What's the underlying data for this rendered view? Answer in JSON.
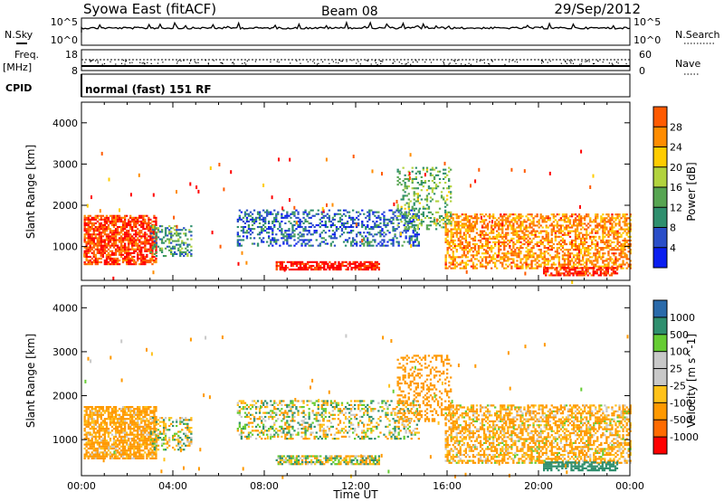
{
  "header": {
    "title": "Syowa East (fitACF)",
    "beam": "Beam 08",
    "date": "29/Sep/2012"
  },
  "top_panels": {
    "nsky_label": "N.Sky",
    "nsky_ticks": [
      "10^5",
      "10^0"
    ],
    "nsearch_label": "N.Search",
    "nsearch_ticks": [
      "10^5",
      "10^0"
    ],
    "freq_label": "Freq.",
    "freq_unit": "[MHz]",
    "freq_ticks": [
      "18",
      "8"
    ],
    "nave_label": "Nave",
    "nave_ticks": [
      "60",
      "0"
    ],
    "cpid_label": "CPID",
    "cpid_text": "normal (fast) 151 RF"
  },
  "colors": {
    "power": [
      "#0a1ef0",
      "#2a4ec8",
      "#2f8f6e",
      "#57a552",
      "#b2d33e",
      "#ffcc00",
      "#ff8c00",
      "#ff5a00",
      "#ff0000"
    ],
    "velocity": [
      "#ff0000",
      "#ff6a00",
      "#ff9900",
      "#ffc21a",
      "#c8c8c8",
      "#c8c8c8",
      "#66cc33",
      "#2f8f6e",
      "#2a6aaa",
      "#2244bb"
    ]
  },
  "chart_data": [
    {
      "type": "heatmap",
      "name": "Power",
      "ylabel": "Slant Range [km]",
      "ylim": [
        180,
        4500
      ],
      "xlim_hours": [
        0,
        24
      ],
      "yticks": [
        1000,
        2000,
        3000,
        4000
      ],
      "colorbar_label": "Power [dB]",
      "colorbar_ticks": [
        "4",
        "8",
        "12",
        "16",
        "20",
        "24",
        "28"
      ],
      "colorbar_range": [
        0,
        30
      ],
      "regions": [
        {
          "t": [
            0.1,
            3.3
          ],
          "r": [
            550,
            1750
          ],
          "level": 26,
          "density": 0.75
        },
        {
          "t": [
            3.0,
            4.8
          ],
          "r": [
            750,
            1500
          ],
          "level": 10,
          "density": 0.4
        },
        {
          "t": [
            6.8,
            14.8
          ],
          "r": [
            1000,
            1900
          ],
          "level": 6,
          "density": 0.35
        },
        {
          "t": [
            8.5,
            13.0
          ],
          "r": [
            420,
            620
          ],
          "level": 29,
          "density": 0.7
        },
        {
          "t": [
            15.9,
            24.0
          ],
          "r": [
            450,
            1800
          ],
          "level": 22,
          "density": 0.55
        },
        {
          "t": [
            20.2,
            23.4
          ],
          "r": [
            280,
            470
          ],
          "level": 28,
          "density": 0.7
        },
        {
          "t": [
            13.8,
            16.2
          ],
          "r": [
            1400,
            2900
          ],
          "level": 12,
          "density": 0.3
        }
      ]
    },
    {
      "type": "heatmap",
      "name": "Velocity",
      "ylabel": "Slant Range [km]",
      "xlabel": "Time UT",
      "ylim": [
        180,
        4500
      ],
      "xlim_hours": [
        0,
        24
      ],
      "yticks": [
        1000,
        2000,
        3000,
        4000
      ],
      "xticks": [
        "00:00",
        "04:00",
        "08:00",
        "12:00",
        "16:00",
        "20:00",
        "00:00"
      ],
      "colorbar_label": "Velocity [m s^-1]",
      "colorbar_ticks": [
        "-1000",
        "-500",
        "-100",
        "-25",
        "25",
        "100",
        "500",
        "1000"
      ],
      "colorbar_range": [
        -1250,
        1250
      ],
      "regions": [
        {
          "t": [
            0.1,
            3.3
          ],
          "r": [
            550,
            1750
          ],
          "level": -200,
          "density": 0.75
        },
        {
          "t": [
            3.0,
            4.8
          ],
          "r": [
            750,
            1500
          ],
          "level": 0,
          "density": 0.4
        },
        {
          "t": [
            6.8,
            14.8
          ],
          "r": [
            1000,
            1900
          ],
          "level": 0,
          "density": 0.35
        },
        {
          "t": [
            8.5,
            13.0
          ],
          "r": [
            420,
            620
          ],
          "level": 0,
          "density": 0.7
        },
        {
          "t": [
            15.9,
            24.0
          ],
          "r": [
            450,
            1800
          ],
          "level": -150,
          "density": 0.55
        },
        {
          "t": [
            20.2,
            23.4
          ],
          "r": [
            280,
            470
          ],
          "level": 300,
          "density": 0.7
        },
        {
          "t": [
            13.8,
            16.2
          ],
          "r": [
            1400,
            2900
          ],
          "level": -300,
          "density": 0.3
        }
      ]
    }
  ]
}
